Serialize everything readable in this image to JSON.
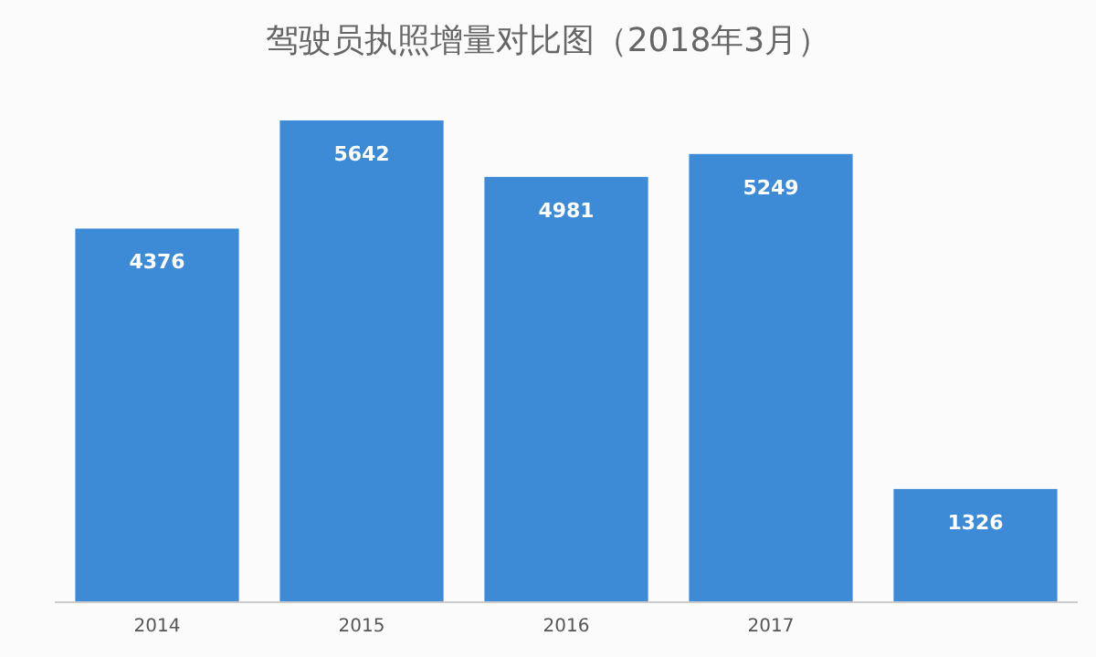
{
  "chart_data": {
    "type": "bar",
    "title": "驾驶员执照增量对比图（2018年3月）",
    "categories": [
      "2014",
      "2015",
      "2016",
      "2017",
      null
    ],
    "values": [
      4376,
      5642,
      4981,
      5249,
      1326
    ],
    "color": "#3d8ad6",
    "data_labels": true
  }
}
